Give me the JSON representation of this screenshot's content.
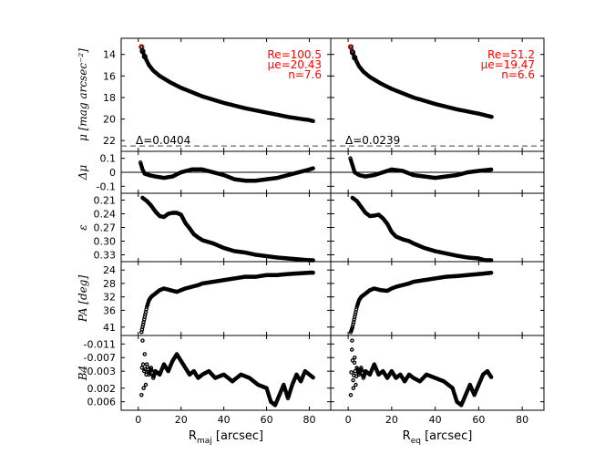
{
  "colors": {
    "axes": "#000000",
    "fit_annotation": "#ff0000",
    "outlier_markers": "#ff0000"
  },
  "chart_data": {
    "type": "scatter",
    "grid": false,
    "columns": [
      {
        "id": "left",
        "xlabel_main": "R",
        "xlabel_sub": "maj",
        "xlabel_rest": " [arcsec]",
        "xlim": [
          -8,
          90
        ]
      },
      {
        "id": "right",
        "xlabel_main": "R",
        "xlabel_sub": "eq",
        "xlabel_rest": " [arcsec]",
        "xlim": [
          -8,
          90
        ]
      }
    ],
    "x_ticks": [
      0,
      20,
      40,
      60,
      80
    ],
    "rows": [
      {
        "id": "mu",
        "ylabel": "μ [mag arcsec⁻²]",
        "ylim": [
          12.5,
          23
        ],
        "inverted": true,
        "yticks": [
          14,
          16,
          18,
          20,
          22
        ],
        "dashed_hline": 22.5,
        "panels": [
          {
            "annotation": [
              "Re=100.5",
              "μe=20.43",
              "n=7.6"
            ],
            "delta_label": "Δ=0.0404",
            "x": [
              1.5,
              2,
              3,
              4,
              5,
              7,
              10,
              15,
              20,
              30,
              40,
              50,
              60,
              70,
              80,
              82
            ],
            "y": [
              13.3,
              13.7,
              14.2,
              14.6,
              15.0,
              15.5,
              16.0,
              16.6,
              17.1,
              17.9,
              18.5,
              19.0,
              19.4,
              19.8,
              20.1,
              20.2
            ]
          },
          {
            "annotation": [
              "Re=51.2",
              "μe=19.47",
              "n=6.6"
            ],
            "delta_label": "Δ=0.0239",
            "x": [
              1.2,
              2,
              3,
              4,
              5,
              7,
              10,
              15,
              20,
              30,
              40,
              50,
              60,
              66
            ],
            "y": [
              13.3,
              13.8,
              14.3,
              14.7,
              15.1,
              15.6,
              16.1,
              16.7,
              17.2,
              18.0,
              18.6,
              19.1,
              19.5,
              19.8
            ]
          }
        ]
      },
      {
        "id": "dmu",
        "ylabel": "Δμ",
        "ylim": [
          0.15,
          -0.15
        ],
        "yticks": [
          -0.1,
          0.0,
          0.1
        ],
        "zero_line": true,
        "panels": [
          {
            "x": [
              1,
              2,
              3,
              5,
              8,
              12,
              16,
              20,
              25,
              30,
              35,
              40,
              45,
              50,
              55,
              60,
              65,
              70,
              75,
              80,
              82
            ],
            "y": [
              0.07,
              0.02,
              -0.01,
              -0.02,
              -0.03,
              -0.04,
              -0.03,
              0.0,
              0.02,
              0.02,
              0.0,
              -0.02,
              -0.05,
              -0.06,
              -0.06,
              -0.05,
              -0.04,
              -0.02,
              0.0,
              0.02,
              0.03
            ]
          },
          {
            "x": [
              1,
              2,
              3,
              5,
              8,
              12,
              16,
              20,
              25,
              30,
              35,
              40,
              45,
              50,
              55,
              60,
              66
            ],
            "y": [
              0.1,
              0.05,
              0.0,
              -0.02,
              -0.03,
              -0.02,
              0.0,
              0.02,
              0.01,
              -0.02,
              -0.03,
              -0.04,
              -0.03,
              -0.02,
              0.0,
              0.01,
              0.02
            ]
          }
        ]
      },
      {
        "id": "eps",
        "ylabel": "ε",
        "ylim": [
          0.195,
          0.345
        ],
        "yticks": [
          0.21,
          0.24,
          0.27,
          0.3,
          0.33
        ],
        "ytick_labels": [
          "0.21",
          "0.24",
          "0.27",
          "0.30",
          "0.33"
        ],
        "panels": [
          {
            "x": [
              2,
              4,
              6,
              8,
              10,
              12,
              14,
              16,
              18,
              20,
              22,
              24,
              26,
              28,
              30,
              35,
              40,
              45,
              50,
              55,
              60,
              65,
              70,
              75,
              80,
              82
            ],
            "y": [
              0.205,
              0.212,
              0.222,
              0.235,
              0.245,
              0.247,
              0.24,
              0.238,
              0.238,
              0.242,
              0.26,
              0.272,
              0.285,
              0.292,
              0.298,
              0.305,
              0.315,
              0.322,
              0.325,
              0.33,
              0.333,
              0.336,
              0.338,
              0.34,
              0.342,
              0.342
            ]
          },
          {
            "x": [
              2,
              4,
              6,
              8,
              10,
              12,
              14,
              16,
              18,
              20,
              22,
              25,
              28,
              30,
              35,
              40,
              45,
              50,
              55,
              60,
              63,
              66
            ],
            "y": [
              0.205,
              0.212,
              0.225,
              0.238,
              0.245,
              0.244,
              0.242,
              0.25,
              0.262,
              0.28,
              0.29,
              0.296,
              0.3,
              0.305,
              0.315,
              0.322,
              0.327,
              0.332,
              0.336,
              0.338,
              0.342,
              0.342
            ]
          }
        ]
      },
      {
        "id": "pa",
        "ylabel": "PA [deg]",
        "ylim": [
          21.5,
          43.5
        ],
        "yticks": [
          24,
          28,
          32,
          36,
          41
        ],
        "panels": [
          {
            "x": [
              1.5,
              2,
              3,
              4,
              5,
              6,
              8,
              10,
              12,
              15,
              18,
              20,
              22,
              25,
              28,
              30,
              35,
              40,
              45,
              50,
              55,
              60,
              65,
              70,
              75,
              80,
              82
            ],
            "y": [
              42.5,
              41,
              38,
              35,
              33,
              32,
              31,
              30,
              29.5,
              30,
              30.5,
              30,
              29.5,
              29,
              28.5,
              28,
              27.5,
              27,
              26.5,
              26,
              26,
              25.5,
              25.5,
              25.2,
              25,
              24.8,
              24.8
            ]
          },
          {
            "x": [
              1.2,
              2,
              3,
              4,
              5,
              6,
              8,
              10,
              12,
              15,
              18,
              20,
              22,
              25,
              28,
              30,
              35,
              40,
              45,
              50,
              55,
              60,
              66
            ],
            "y": [
              42.5,
              41,
              38,
              35,
              33,
              32,
              31,
              30,
              29.5,
              30,
              30.2,
              29.5,
              29,
              28.5,
              28,
              27.5,
              27,
              26.5,
              26,
              25.8,
              25.5,
              25.2,
              24.8
            ]
          }
        ]
      },
      {
        "id": "b4",
        "ylabel": "B4",
        "ylim": [
          -0.0135,
          0.0085
        ],
        "yticks": [
          0.006,
          0.002,
          -0.003,
          -0.007,
          -0.011
        ],
        "ytick_labels": [
          "0.006",
          "0.002",
          "-0.003",
          "-0.007",
          "-0.011"
        ],
        "panels": [
          {
            "x": [
              1.5,
              2,
              2.5,
              3,
              3.5,
              4,
              5,
              6,
              7,
              8,
              10,
              12,
              14,
              16,
              18,
              20,
              22,
              24,
              26,
              28,
              30,
              33,
              36,
              40,
              44,
              48,
              52,
              56,
              60,
              62,
              64,
              66,
              68,
              70,
              72,
              74,
              76,
              78,
              80,
              82
            ],
            "y": [
              0.004,
              -0.012,
              0.002,
              -0.008,
              0.001,
              -0.005,
              -0.002,
              -0.004,
              -0.001,
              -0.003,
              -0.002,
              -0.005,
              -0.003,
              -0.006,
              -0.008,
              -0.006,
              -0.004,
              -0.002,
              -0.003,
              -0.001,
              -0.002,
              -0.003,
              -0.001,
              -0.002,
              0.0,
              -0.002,
              -0.001,
              0.001,
              0.002,
              0.006,
              0.007,
              0.004,
              0.001,
              0.005,
              0.001,
              -0.002,
              0.0,
              -0.003,
              -0.002,
              -0.001
            ]
          },
          {
            "x": [
              1.2,
              1.8,
              2.4,
              3,
              3.5,
              4,
              5,
              6,
              7,
              8,
              10,
              12,
              14,
              16,
              18,
              20,
              22,
              24,
              26,
              28,
              30,
              33,
              36,
              40,
              44,
              48,
              50,
              52,
              54,
              56,
              58,
              60,
              62,
              64,
              66
            ],
            "y": [
              0.004,
              -0.012,
              0.002,
              -0.007,
              0.001,
              -0.004,
              -0.002,
              -0.004,
              -0.001,
              -0.003,
              -0.002,
              -0.005,
              -0.002,
              -0.003,
              -0.001,
              -0.003,
              -0.001,
              -0.002,
              0.0,
              -0.002,
              -0.001,
              0.0,
              -0.002,
              -0.001,
              0.0,
              0.002,
              0.006,
              0.007,
              0.004,
              0.001,
              0.004,
              0.001,
              -0.002,
              -0.003,
              -0.001
            ]
          }
        ]
      }
    ]
  }
}
